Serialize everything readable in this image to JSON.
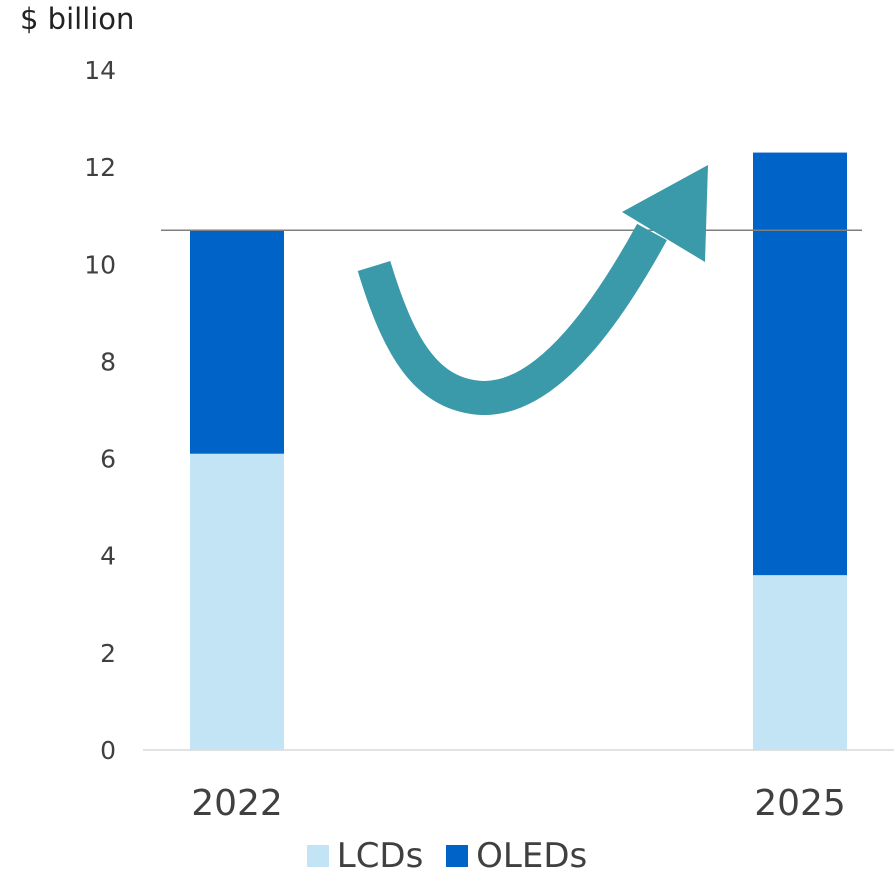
{
  "chart_data": {
    "type": "bar",
    "stacked": true,
    "ylabel": "$ billion",
    "ylim": [
      0,
      14
    ],
    "yticks": [
      0,
      2,
      4,
      6,
      8,
      10,
      12,
      14
    ],
    "categories": [
      "2022",
      "2025"
    ],
    "series": [
      {
        "name": "LCDs",
        "color": "#c2e4f4",
        "values": [
          6.1,
          3.6
        ]
      },
      {
        "name": "OLEDs",
        "color": "#0063c7",
        "values": [
          4.6,
          8.7
        ]
      }
    ],
    "reference_line": {
      "value": 10.7,
      "color": "#7f7f7f"
    },
    "annotation": {
      "type": "curved-arrow",
      "direction": "up-right",
      "color": "#3a9aa9"
    },
    "legend": "bottom",
    "grid": false
  }
}
